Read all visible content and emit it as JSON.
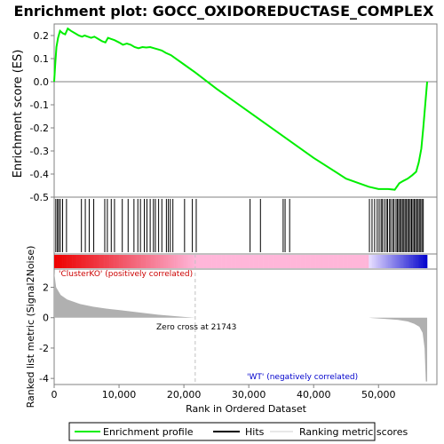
{
  "chart_data": {
    "type": "line",
    "title": "Enrichment plot: GOCC_OXIDOREDUCTASE_COMPLEX",
    "xlabel": "Rank in Ordered Dataset",
    "ylabel_top": "Enrichment score (ES)",
    "ylabel_bottom": "Ranked list metric (Signal2Noise)",
    "x_range": [
      0,
      59000
    ],
    "x_ticks": [
      0,
      10000,
      20000,
      30000,
      40000,
      50000
    ],
    "x_tick_labels": [
      "0",
      "10,000",
      "20,000",
      "30,000",
      "40,000",
      "50,000"
    ],
    "es_ylim": [
      -0.5,
      0.25
    ],
    "es_ticks": [
      0.2,
      0.1,
      0.0,
      -0.1,
      -0.2,
      -0.3,
      -0.4,
      -0.5
    ],
    "es_tick_labels": [
      "0.2",
      "0.1",
      "0.0",
      "-0.1",
      "-0.2",
      "-0.3",
      "-0.4",
      "-0.5"
    ],
    "metric_ylim": [
      -4.4,
      3.2
    ],
    "metric_ticks": [
      2,
      0,
      -2,
      -4
    ],
    "metric_tick_labels": [
      "2",
      "0",
      "-2",
      "-4"
    ],
    "enrichment_profile": [
      [
        0,
        0.0
      ],
      [
        150,
        0.07
      ],
      [
        350,
        0.15
      ],
      [
        600,
        0.19
      ],
      [
        900,
        0.22
      ],
      [
        1300,
        0.21
      ],
      [
        1700,
        0.205
      ],
      [
        2100,
        0.23
      ],
      [
        2600,
        0.22
      ],
      [
        3200,
        0.21
      ],
      [
        3800,
        0.2
      ],
      [
        4300,
        0.195
      ],
      [
        4700,
        0.2
      ],
      [
        5200,
        0.195
      ],
      [
        5700,
        0.19
      ],
      [
        6200,
        0.195
      ],
      [
        6800,
        0.185
      ],
      [
        7400,
        0.175
      ],
      [
        7900,
        0.17
      ],
      [
        8300,
        0.19
      ],
      [
        8800,
        0.185
      ],
      [
        9300,
        0.18
      ],
      [
        10000,
        0.17
      ],
      [
        10600,
        0.16
      ],
      [
        11200,
        0.165
      ],
      [
        11800,
        0.16
      ],
      [
        12400,
        0.15
      ],
      [
        13000,
        0.145
      ],
      [
        13600,
        0.15
      ],
      [
        14200,
        0.148
      ],
      [
        14800,
        0.15
      ],
      [
        15400,
        0.145
      ],
      [
        16000,
        0.14
      ],
      [
        16600,
        0.135
      ],
      [
        17200,
        0.125
      ],
      [
        18000,
        0.115
      ],
      [
        19000,
        0.095
      ],
      [
        20000,
        0.075
      ],
      [
        21743,
        0.04
      ],
      [
        25000,
        -0.03
      ],
      [
        30000,
        -0.13
      ],
      [
        35000,
        -0.23
      ],
      [
        40000,
        -0.33
      ],
      [
        45000,
        -0.42
      ],
      [
        48500,
        -0.455
      ],
      [
        50000,
        -0.465
      ],
      [
        51500,
        -0.465
      ],
      [
        52500,
        -0.468
      ],
      [
        53200,
        -0.44
      ],
      [
        53800,
        -0.43
      ],
      [
        54500,
        -0.42
      ],
      [
        55200,
        -0.405
      ],
      [
        55800,
        -0.39
      ],
      [
        56200,
        -0.35
      ],
      [
        56600,
        -0.29
      ],
      [
        56900,
        -0.2
      ],
      [
        57200,
        -0.1
      ],
      [
        57500,
        0.0
      ]
    ],
    "hits": [
      250,
      500,
      700,
      950,
      1300,
      1900,
      4200,
      4800,
      5400,
      6100,
      7800,
      8200,
      8800,
      9300,
      10500,
      11400,
      12300,
      12900,
      13300,
      13900,
      14300,
      14800,
      15300,
      15600,
      16100,
      16600,
      17300,
      17600,
      17900,
      18300,
      20100,
      21300,
      21900,
      30200,
      31800,
      35300,
      35600,
      36300,
      48600,
      49000,
      49400,
      49800,
      50100,
      50400,
      50600,
      50900,
      51200,
      51400,
      51700,
      51900,
      52200,
      52400,
      52700,
      52900,
      53100,
      53300,
      53500,
      53700,
      53900,
      54100,
      54300,
      54500,
      54700,
      54900,
      55100,
      55300,
      55500,
      55700,
      55900,
      56100,
      56300,
      56500,
      56700,
      56900
    ],
    "ranked_metric": [
      [
        0,
        3.0
      ],
      [
        300,
        2.0
      ],
      [
        1000,
        1.5
      ],
      [
        2000,
        1.2
      ],
      [
        4000,
        0.9
      ],
      [
        6000,
        0.72
      ],
      [
        8000,
        0.6
      ],
      [
        10000,
        0.5
      ],
      [
        12000,
        0.4
      ],
      [
        14000,
        0.3
      ],
      [
        16000,
        0.2
      ],
      [
        18000,
        0.12
      ],
      [
        20000,
        0.05
      ],
      [
        21743,
        0.0
      ],
      [
        30000,
        0.0
      ],
      [
        40000,
        0.0
      ],
      [
        48500,
        0.0
      ],
      [
        49000,
        -0.02
      ],
      [
        51000,
        -0.08
      ],
      [
        53000,
        -0.15
      ],
      [
        54500,
        -0.25
      ],
      [
        55500,
        -0.4
      ],
      [
        56300,
        -0.6
      ],
      [
        56800,
        -1.0
      ],
      [
        57100,
        -2.0
      ],
      [
        57300,
        -4.2
      ],
      [
        57500,
        -4.2
      ]
    ],
    "zero_cross": 21743,
    "zero_cross_label": "Zero cross at 21743",
    "pos_label": "'ClusterKO' (positively correlated)",
    "neg_label": "'WT' (negatively correlated)",
    "legend": [
      "Enrichment profile",
      "Hits",
      "Ranking metric scores"
    ],
    "colors": {
      "profile": "#00ee00",
      "hits": "#000000",
      "metric": "#b0b0b0",
      "pos_band": "#ee0000",
      "mid_band": "#ffb6d9",
      "neg_band": "#0000cc",
      "pos_text": "#cc0000",
      "neg_text": "#0000cc"
    }
  }
}
